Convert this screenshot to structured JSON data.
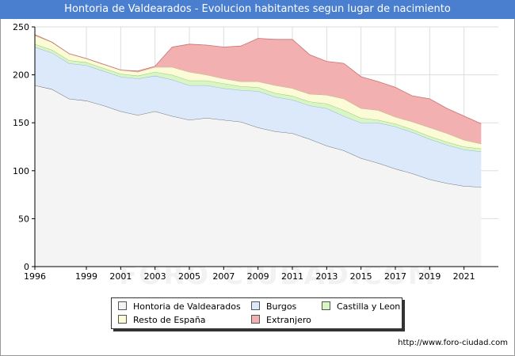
{
  "window": {
    "title": "Hontoria de Valdearados - Evolucion habitantes segun lugar de nacimiento"
  },
  "watermark": "FORO-CIUDAD.COM",
  "footer": {
    "url": "http://www.foro-ciudad.com"
  },
  "colors": {
    "title_bar": "#4a7fd0",
    "plot_bg": "#f4f4f4",
    "grid": "#dddddd"
  },
  "chart_data": {
    "type": "area",
    "stacked": true,
    "title": "Hontoria de Valdearados - Evolucion habitantes segun lugar de nacimiento",
    "xlabel": "",
    "ylabel": "",
    "xlim": [
      1996,
      2023
    ],
    "ylim": [
      0,
      250
    ],
    "x_ticks": [
      1996,
      1999,
      2001,
      2003,
      2005,
      2007,
      2009,
      2011,
      2013,
      2015,
      2017,
      2019,
      2021
    ],
    "y_ticks": [
      0,
      50,
      100,
      150,
      200,
      250
    ],
    "grid": true,
    "legend_position": "bottom",
    "x": [
      1996,
      1997,
      1998,
      1999,
      2000,
      2001,
      2002,
      2003,
      2004,
      2005,
      2006,
      2007,
      2008,
      2009,
      2010,
      2011,
      2012,
      2013,
      2014,
      2015,
      2016,
      2017,
      2018,
      2019,
      2020,
      2021,
      2022
    ],
    "series": [
      {
        "name": "Hontoria de Valdearados",
        "color": "#f4f4f4",
        "stroke": "#555555",
        "values": [
          189,
          185,
          175,
          173,
          168,
          162,
          158,
          162,
          157,
          153,
          155,
          153,
          151,
          145,
          141,
          139,
          133,
          126,
          121,
          113,
          108,
          102,
          97,
          91,
          87,
          84,
          83
        ]
      },
      {
        "name": "Burgos",
        "color": "#dbe9fb",
        "stroke": "#8aa8d8",
        "values": [
          40,
          38,
          37,
          37,
          36,
          36,
          38,
          37,
          38,
          36,
          34,
          33,
          33,
          38,
          36,
          35,
          35,
          39,
          36,
          37,
          42,
          44,
          43,
          42,
          40,
          38,
          37
        ]
      },
      {
        "name": "Castilla y Leon",
        "color": "#d8f5c4",
        "stroke": "#88c06a",
        "values": [
          3,
          3,
          3,
          3,
          3,
          3,
          3,
          4,
          5,
          5,
          5,
          5,
          4,
          4,
          4,
          4,
          4,
          5,
          6,
          5,
          3,
          3,
          3,
          3,
          3,
          3,
          3
        ]
      },
      {
        "name": "Resto de España",
        "color": "#fbfbd8",
        "stroke": "#b8b880",
        "values": [
          9,
          8,
          7,
          4,
          4,
          4,
          4,
          5,
          8,
          9,
          6,
          5,
          5,
          6,
          8,
          8,
          8,
          9,
          12,
          10,
          10,
          7,
          8,
          9,
          9,
          7,
          5
        ]
      },
      {
        "name": "Extranjero",
        "color": "#f2b0b0",
        "stroke": "#cc7070",
        "values": [
          1,
          0,
          0,
          0,
          0,
          0,
          1,
          1,
          21,
          29,
          31,
          33,
          37,
          45,
          48,
          51,
          41,
          35,
          37,
          33,
          30,
          31,
          27,
          30,
          26,
          25,
          21
        ]
      }
    ]
  }
}
